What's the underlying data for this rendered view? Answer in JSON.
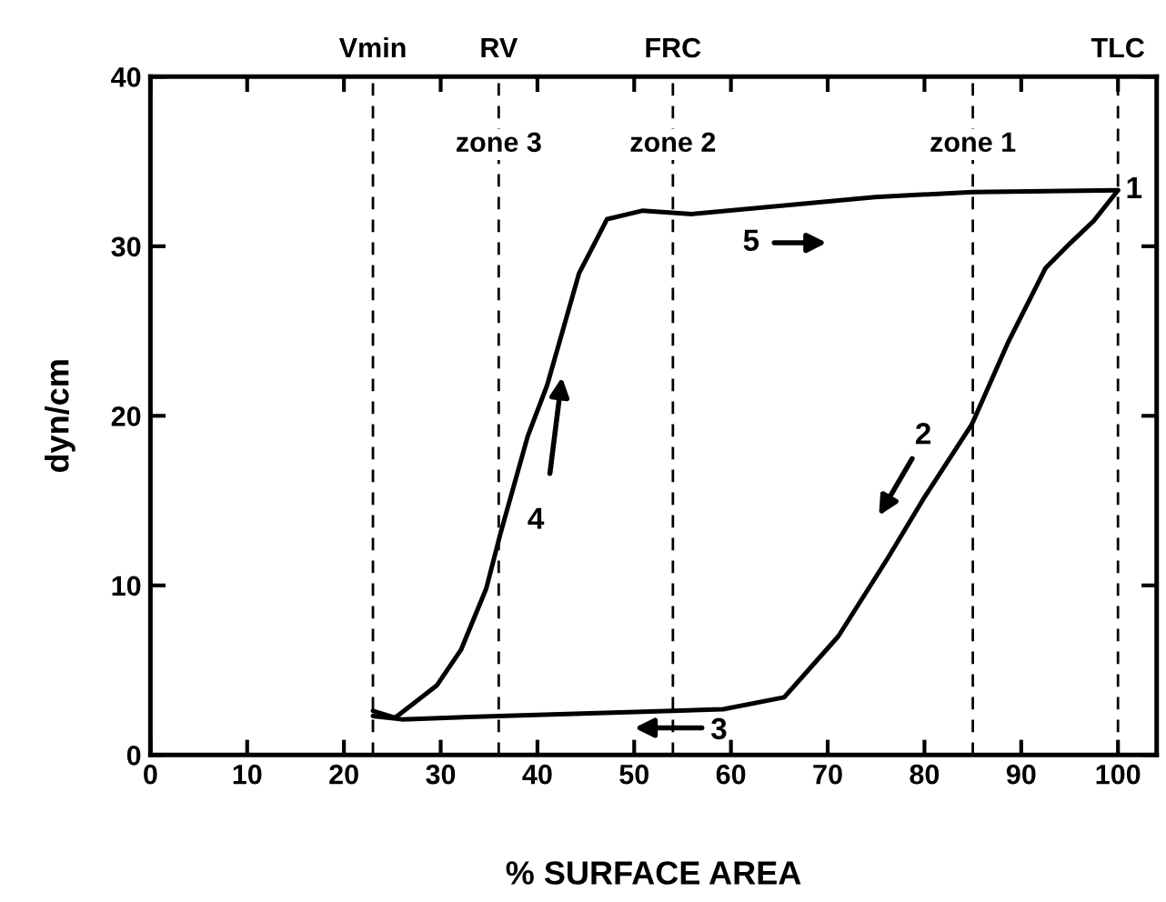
{
  "chart_data": {
    "type": "line",
    "xlabel": "% SURFACE AREA",
    "ylabel": "dyn/cm",
    "xlim": [
      0,
      104
    ],
    "ylim": [
      0,
      40
    ],
    "xticks": [
      0,
      10,
      20,
      30,
      40,
      50,
      60,
      70,
      80,
      90,
      100
    ],
    "yticks": [
      0,
      10,
      20,
      30,
      40
    ],
    "grid": false,
    "marker": "none",
    "line_style": "solid",
    "series": [
      {
        "color": "#000000",
        "x": [
          23,
          26,
          36,
          54,
          59.2,
          65.5,
          71.1,
          76.2,
          80,
          84.9,
          88.7,
          92.5,
          95.1,
          97.5,
          100
        ],
        "values": [
          2.3,
          2.1,
          2.3,
          2.6,
          2.7,
          3.4,
          7,
          11.6,
          15.2,
          19.5,
          24.4,
          28.7,
          30.2,
          31.5,
          33.3
        ]
      },
      {
        "color": "#000000",
        "x": [
          23,
          25.3,
          29.6,
          32.1,
          34.7,
          36.2,
          39,
          41,
          44.3,
          47.2,
          50.9,
          56,
          74.9,
          85,
          100
        ],
        "values": [
          2.6,
          2.2,
          4.1,
          6.2,
          9.8,
          13.1,
          18.8,
          21.8,
          28.4,
          31.6,
          32.1,
          31.9,
          32.9,
          33.2,
          33.3
        ]
      }
    ],
    "ref_lines": [
      {
        "axis": "x",
        "value": 23,
        "label": "Vmin",
        "color": "#000000",
        "line_style": "dashed"
      },
      {
        "axis": "x",
        "value": 36,
        "label": "RV",
        "color": "#000000",
        "line_style": "dashed"
      },
      {
        "axis": "x",
        "value": 54,
        "label": "FRC",
        "color": "#000000",
        "line_style": "dashed"
      },
      {
        "axis": "x",
        "value": 85,
        "color": "#000000",
        "line_style": "dashed"
      },
      {
        "axis": "x",
        "value": 100,
        "label": "TLC",
        "color": "#000000",
        "line_style": "dashed"
      }
    ],
    "annotations": [
      {
        "text": "zone 3",
        "x": 36,
        "y": 36
      },
      {
        "text": "zone 2",
        "x": 54,
        "y": 36
      },
      {
        "text": "zone 1",
        "x": 85,
        "y": 36
      },
      {
        "text": "1",
        "x": 100,
        "y": 33.3
      },
      "2",
      "3",
      "4",
      "5"
    ]
  }
}
